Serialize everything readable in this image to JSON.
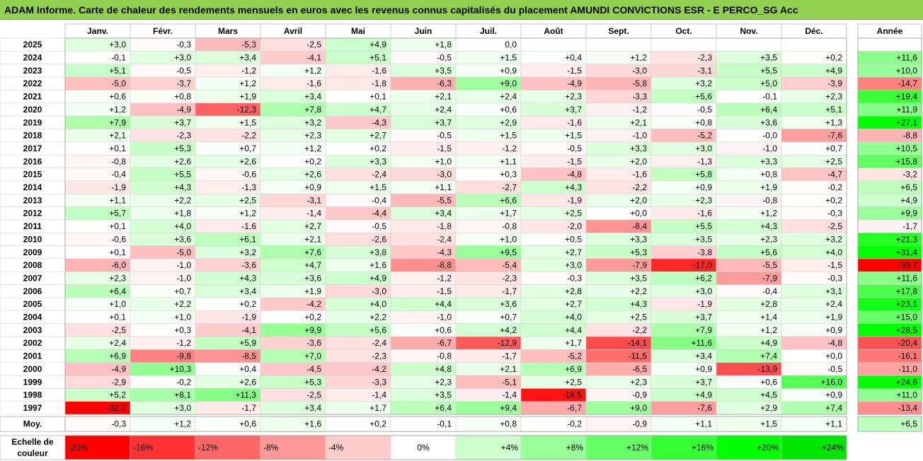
{
  "title": "ADAM Informe. Carte de chaleur des rendements mensuels en euros avec les revenus connus capitalisés du placement AMUNDI CONVICTIONS ESR - E PERCO_SG Acc",
  "chart_data": {
    "type": "heatmap",
    "title": "ADAM Informe. Carte de chaleur des rendements mensuels en euros avec les revenus connus capitalisés du placement AMUNDI CONVICTIONS ESR - E PERCO_SG Acc",
    "columns": [
      "Janv.",
      "Févr.",
      "Mars",
      "Avril",
      "Mai",
      "Juin",
      "Juil.",
      "Août",
      "Sept.",
      "Oct.",
      "Nov.",
      "Déc."
    ],
    "annual_header": "Année",
    "rows": [
      {
        "year": "2025",
        "values": [
          "+3,0",
          "-0,3",
          "-5,3",
          "-2,5",
          "+4,9",
          "+1,8",
          "0,0",
          "",
          "",
          "",
          "",
          ""
        ],
        "annual": ""
      },
      {
        "year": "2024",
        "values": [
          "-0,1",
          "+3,0",
          "+3,4",
          "-4,1",
          "+5,1",
          "-0,5",
          "+1,5",
          "+0,4",
          "+1,2",
          "-2,3",
          "+3,5",
          "+0,2"
        ],
        "annual": "+11,6"
      },
      {
        "year": "2023",
        "values": [
          "+5,1",
          "-0,5",
          "-1,2",
          "+1,2",
          "-1,6",
          "+3,5",
          "+0,9",
          "-1,5",
          "-3,0",
          "-3,1",
          "+5,5",
          "+4,9"
        ],
        "annual": "+10,0"
      },
      {
        "year": "2022",
        "values": [
          "-5,0",
          "-3,7",
          "+1,2",
          "-1,6",
          "-1,8",
          "-6,3",
          "+9,0",
          "-4,9",
          "-5,8",
          "+3,2",
          "+5,0",
          "-3,9"
        ],
        "annual": "-14,7"
      },
      {
        "year": "2021",
        "values": [
          "+0,6",
          "+0,8",
          "+1,9",
          "+3,4",
          "+0,1",
          "+2,1",
          "+2,4",
          "+2,3",
          "-3,3",
          "+5,6",
          "-0,1",
          "+2,3"
        ],
        "annual": "+19,4"
      },
      {
        "year": "2020",
        "values": [
          "+1,2",
          "-4,9",
          "-12,3",
          "+7,8",
          "+4,7",
          "+2,4",
          "+0,6",
          "+3,7",
          "-1,2",
          "-0,5",
          "+6,4",
          "+5,1"
        ],
        "annual": "+11,9"
      },
      {
        "year": "2019",
        "values": [
          "+7,9",
          "+3,7",
          "+1,5",
          "+3,2",
          "-4,3",
          "+3,7",
          "+2,9",
          "-1,6",
          "+2,1",
          "+0,8",
          "+3,6",
          "+1,3"
        ],
        "annual": "+27,1"
      },
      {
        "year": "2018",
        "values": [
          "+2,1",
          "-2,3",
          "-2,2",
          "+2,3",
          "+2,7",
          "-0,5",
          "+1,5",
          "+1,5",
          "-1,0",
          "-5,2",
          "-0,0",
          "-7,6"
        ],
        "annual": "-8,8"
      },
      {
        "year": "2017",
        "values": [
          "+0,1",
          "+5,3",
          "+0,7",
          "+1,2",
          "+0,2",
          "-1,5",
          "-1,2",
          "-0,5",
          "+3,3",
          "+3,0",
          "-1,0",
          "+0,7"
        ],
        "annual": "+10,5"
      },
      {
        "year": "2016",
        "values": [
          "-0,8",
          "+2,6",
          "+2,6",
          "+0,2",
          "+3,3",
          "+1,0",
          "+1,1",
          "-1,5",
          "+2,0",
          "-1,3",
          "+3,3",
          "+2,5"
        ],
        "annual": "+15,8"
      },
      {
        "year": "2015",
        "values": [
          "-0,4",
          "+5,5",
          "-0,6",
          "+2,6",
          "-2,4",
          "-3,0",
          "+0,3",
          "-4,8",
          "-1,6",
          "+5,8",
          "+0,8",
          "-4,7"
        ],
        "annual": "-3,2"
      },
      {
        "year": "2014",
        "values": [
          "-1,9",
          "+4,3",
          "-1,3",
          "+0,9",
          "+1,5",
          "+1,1",
          "-2,7",
          "+4,3",
          "-2,2",
          "+0,9",
          "+1,9",
          "-0,2"
        ],
        "annual": "+6,5"
      },
      {
        "year": "2013",
        "values": [
          "+1,1",
          "+2,2",
          "+2,5",
          "-3,1",
          "-0,4",
          "-5,5",
          "+6,6",
          "-1,9",
          "+2,0",
          "+2,3",
          "-0,8",
          "+0,2"
        ],
        "annual": "+4,9"
      },
      {
        "year": "2012",
        "values": [
          "+5,7",
          "+1,8",
          "+1,2",
          "-1,4",
          "-4,4",
          "+3,4",
          "+1,7",
          "+2,5",
          "+0,0",
          "-1,6",
          "+1,2",
          "-0,3"
        ],
        "annual": "+9,9"
      },
      {
        "year": "2011",
        "values": [
          "+0,1",
          "+4,0",
          "-1,6",
          "+2,7",
          "-0,5",
          "-1,8",
          "-0,8",
          "-2,0",
          "-8,4",
          "+5,5",
          "+4,3",
          "-2,5"
        ],
        "annual": "-1,7"
      },
      {
        "year": "2010",
        "values": [
          "-0,6",
          "+3,6",
          "+6,1",
          "+2,1",
          "-2,6",
          "-2,4",
          "+1,0",
          "+0,5",
          "+3,3",
          "+3,5",
          "+2,3",
          "+3,2"
        ],
        "annual": "+21,3"
      },
      {
        "year": "2009",
        "values": [
          "+0,1",
          "-5,0",
          "+3,2",
          "+7,6",
          "+3,8",
          "-4,3",
          "+9,5",
          "+2,7",
          "+5,3",
          "-3,8",
          "+5,6",
          "+4,0"
        ],
        "annual": "+31,4"
      },
      {
        "year": "2008",
        "values": [
          "-6,0",
          "-1,0",
          "-3,6",
          "+4,7",
          "+1,6",
          "-8,8",
          "-5,4",
          "+3,0",
          "-7,9",
          "-17,0",
          "-5,5",
          "-1,5"
        ],
        "annual": "-39,7"
      },
      {
        "year": "2007",
        "values": [
          "+2,3",
          "-1,0",
          "+4,3",
          "+3,6",
          "+4,9",
          "-1,2",
          "-2,3",
          "-0,3",
          "+3,5",
          "+6,2",
          "-7,9",
          "-0,3"
        ],
        "annual": "+11,6"
      },
      {
        "year": "2006",
        "values": [
          "+6,4",
          "+0,7",
          "+3,4",
          "+1,9",
          "-3,0",
          "-1,5",
          "-1,7",
          "+2,8",
          "+2,2",
          "+3,0",
          "-0,4",
          "+3,1"
        ],
        "annual": "+17,8"
      },
      {
        "year": "2005",
        "values": [
          "+1,0",
          "+2,2",
          "+0,2",
          "-4,2",
          "+4,0",
          "+4,4",
          "+3,6",
          "+2,7",
          "+4,3",
          "-1,9",
          "+2,8",
          "+2,4"
        ],
        "annual": "+23,1"
      },
      {
        "year": "2004",
        "values": [
          "+0,1",
          "+1,0",
          "-1,9",
          "+0,2",
          "+2,2",
          "-1,0",
          "+0,7",
          "+4,0",
          "+2,5",
          "+3,7",
          "+1,4",
          "+1,9"
        ],
        "annual": "+15,0"
      },
      {
        "year": "2003",
        "values": [
          "-2,5",
          "+0,3",
          "-4,1",
          "+9,9",
          "+5,6",
          "+0,6",
          "+4,2",
          "+4,4",
          "-2,2",
          "+7,9",
          "+1,2",
          "+0,9"
        ],
        "annual": "+28,5"
      },
      {
        "year": "2002",
        "values": [
          "+2,4",
          "-1,2",
          "+5,9",
          "-3,6",
          "-2,4",
          "-6,7",
          "-12,9",
          "+1,7",
          "-14,1",
          "+11,6",
          "+4,9",
          "-4,8"
        ],
        "annual": "-20,4"
      },
      {
        "year": "2001",
        "values": [
          "+6,9",
          "-9,8",
          "-8,5",
          "+7,0",
          "-2,3",
          "-0,8",
          "-1,7",
          "-5,2",
          "-11,5",
          "+3,4",
          "+7,4",
          "+0,0"
        ],
        "annual": "-16,1"
      },
      {
        "year": "2000",
        "values": [
          "-4,9",
          "+10,3",
          "+0,4",
          "-4,5",
          "-4,2",
          "+4,8",
          "+2,1",
          "+6,9",
          "-6,5",
          "+0,9",
          "-13,9",
          "-0,5"
        ],
        "annual": "-11,0"
      },
      {
        "year": "1999",
        "values": [
          "-2,9",
          "-0,2",
          "+2,6",
          "+5,3",
          "-3,3",
          "+2,3",
          "-5,1",
          "+2,5",
          "+2,3",
          "+3,7",
          "+0,6",
          "+16,0"
        ],
        "annual": "+24,6"
      },
      {
        "year": "1998",
        "values": [
          "+5,2",
          "+8,1",
          "+11,3",
          "-2,5",
          "-1,4",
          "+3,5",
          "-1,4",
          "-18,5",
          "-0,9",
          "+4,9",
          "+4,5",
          "+0,9"
        ],
        "annual": "+11,0"
      },
      {
        "year": "1997",
        "values": [
          "-32,7",
          "+3,0",
          "-1,7",
          "+3,4",
          "+1,7",
          "+6,4",
          "+9,4",
          "-6,7",
          "+9,0",
          "-7,6",
          "+2,9",
          "+7,4"
        ],
        "annual": "-13,4"
      }
    ],
    "average": {
      "label": "Moy.",
      "values": [
        "-0,3",
        "+1,2",
        "+0,6",
        "+1,6",
        "+0,2",
        "-0,1",
        "+0,8",
        "-0,2",
        "-0,9",
        "+1,1",
        "+1,5",
        "+1,1"
      ],
      "annual": "+6,5"
    },
    "scale": {
      "label_line1": "Echelle de",
      "label_line2": "couleur",
      "stops": [
        {
          "label": "-20%",
          "color": "#ff0000"
        },
        {
          "label": "-16%",
          "color": "#ff3333"
        },
        {
          "label": "-12%",
          "color": "#ff6666"
        },
        {
          "label": "-8%",
          "color": "#ff9999"
        },
        {
          "label": "-4%",
          "color": "#ffcccc"
        },
        {
          "label": "0%",
          "color": "#ffffff"
        },
        {
          "label": "+4%",
          "color": "#ccffcc"
        },
        {
          "label": "+8%",
          "color": "#99ff99"
        },
        {
          "label": "+12%",
          "color": "#66ff66"
        },
        {
          "label": "+16%",
          "color": "#33ff33"
        },
        {
          "label": "+20%",
          "color": "#00ff00"
        },
        {
          "label": "+24%",
          "color": "#00e600"
        }
      ]
    },
    "colors": {
      "header_band": "#92d050",
      "negative_max": "#ff0000",
      "positive_max": "#00ff00",
      "neutral": "#ffffff"
    }
  }
}
